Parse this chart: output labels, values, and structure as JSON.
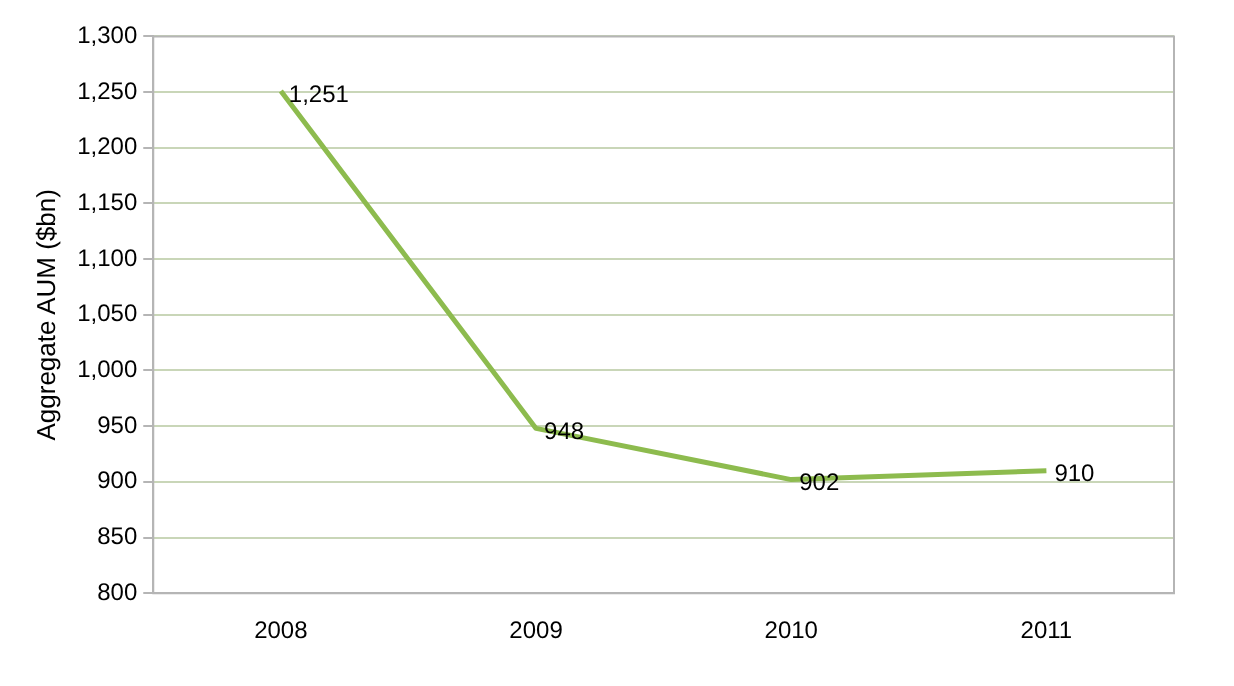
{
  "chart_data": {
    "type": "line",
    "ylabel": "Aggregate AUM ($bn)",
    "categories": [
      "2008",
      "2009",
      "2010",
      "2011"
    ],
    "series": [
      {
        "color": "#8dbb4e",
        "values": [
          1251,
          948,
          902,
          910
        ],
        "value_labels": [
          "1,251",
          "948",
          "902",
          "910"
        ]
      }
    ],
    "ylim": [
      800,
      1300
    ],
    "yticks": [
      800,
      850,
      900,
      950,
      {
        "value": 1000,
        "label": "1,000"
      },
      {
        "value": 1050,
        "label": "1,050"
      },
      {
        "value": 1100,
        "label": "1,100"
      },
      {
        "value": 1150,
        "label": "1,150"
      },
      {
        "value": 1200,
        "label": "1,200"
      },
      {
        "value": 1250,
        "label": "1,250"
      },
      {
        "value": 1300,
        "label": "1,300"
      }
    ],
    "grid": "y",
    "legend": false,
    "marker": "none",
    "line_style": "solid"
  }
}
